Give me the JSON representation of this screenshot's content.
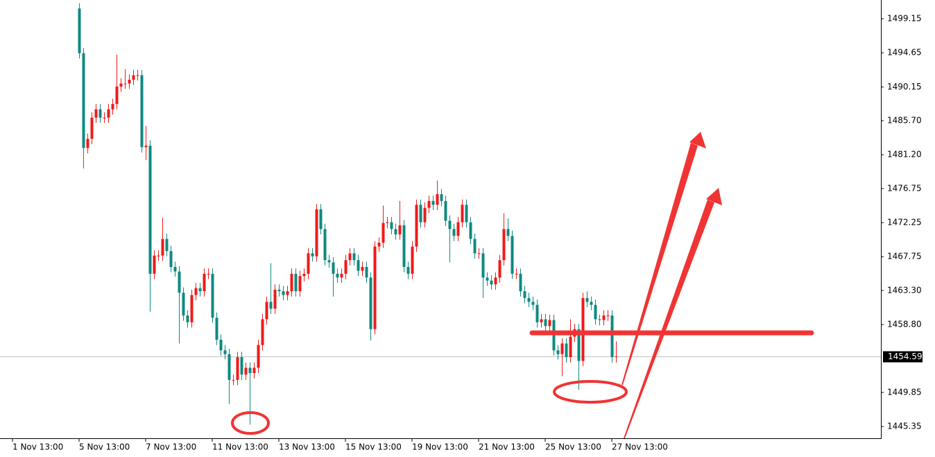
{
  "chart_data": {
    "type": "candlestick",
    "categories": [
      "1 Nov 13:00",
      null,
      null,
      null,
      null,
      null,
      null,
      null,
      null,
      null,
      null,
      null,
      null,
      null,
      null,
      null,
      "5 Nov 13:00",
      null,
      null,
      null,
      null,
      null,
      null,
      null,
      null,
      null,
      null,
      null,
      null,
      null,
      null,
      null,
      "7 Nov 13:00",
      null,
      null,
      null,
      null,
      null,
      null,
      null,
      null,
      null,
      null,
      null,
      null,
      null,
      null,
      null,
      "11 Nov 13:00",
      null,
      null,
      null,
      null,
      null,
      null,
      null,
      null,
      null,
      null,
      null,
      null,
      null,
      null,
      null,
      "13 Nov 13:00",
      null,
      null,
      null,
      null,
      null,
      null,
      null,
      null,
      null,
      null,
      null,
      null,
      null,
      null,
      null,
      "15 Nov 13:00",
      null,
      null,
      null,
      null,
      null,
      null,
      null,
      null,
      null,
      null,
      null,
      null,
      null,
      null,
      null,
      "19 Nov 13:00",
      null,
      null,
      null,
      null,
      null,
      null,
      null,
      null,
      null,
      null,
      null,
      null,
      null,
      null,
      null,
      "21 Nov 13:00",
      null,
      null,
      null,
      null,
      null,
      null,
      null,
      null,
      null,
      null,
      null,
      null,
      null,
      null,
      null,
      "25 Nov 13:00",
      null,
      null,
      null,
      null,
      null,
      null,
      null,
      null,
      null,
      null,
      null,
      null,
      null,
      null,
      null,
      "27 Nov 13:00",
      null
    ],
    "open": [
      null,
      null,
      null,
      null,
      null,
      null,
      null,
      null,
      null,
      null,
      null,
      null,
      null,
      null,
      null,
      null,
      1500.5,
      1494.6,
      1482.1,
      1483.3,
      1486.1,
      1487.2,
      1486.1,
      1486.1,
      1487.2,
      1487.9,
      1490.2,
      1490.6,
      1490.6,
      1491.1,
      1491.7,
      1491.7,
      1482.2,
      1482.4,
      1465.5,
      1467.9,
      1467.9,
      1470.1,
      1468.5,
      1466.4,
      1465.8,
      1463.0,
      1460.0,
      1459.1,
      1462.7,
      1463.6,
      1463.2,
      1465.5,
      1465.5,
      1459.7,
      1456.8,
      1455.4,
      1454.9,
      1451.5,
      1451.5,
      1454.5,
      1452.2,
      1453.1,
      1452.4,
      1453.1,
      1456.1,
      1459.5,
      1461.8,
      1460.9,
      1463.4,
      1463.2,
      1462.7,
      1463.2,
      1465.5,
      1463.2,
      1465.2,
      1465.5,
      1468.2,
      1467.8,
      1474.0,
      1471.4,
      1467.3,
      1467.0,
      1465.5,
      1465.0,
      1465.5,
      1467.3,
      1468.2,
      1467.3,
      1465.9,
      1466.4,
      1465.0,
      1458.2,
      1469.1,
      1469.6,
      1472.2,
      1472.3,
      1471.4,
      1470.7,
      1471.9,
      1466.4,
      1465.5,
      1469.1,
      1474.6,
      1472.3,
      1474.2,
      1475.1,
      1474.6,
      1476.0,
      1475.1,
      1472.5,
      1471.4,
      1470.5,
      1472.3,
      1474.6,
      1472.3,
      1470.1,
      1468.2,
      1468.2,
      1465.0,
      1464.6,
      1464.1,
      1465.0,
      1467.3,
      1471.4,
      1470.5,
      1465.5,
      1465.5,
      1463.2,
      1462.3,
      1461.8,
      1461.4,
      1459.1,
      1459.5,
      1458.6,
      1459.4,
      1455.4,
      1454.9,
      1456.3,
      1454.5,
      1457.2,
      1458.2,
      1454.0,
      1462.3,
      1461.8,
      1461.4,
      1459.5,
      1459.4,
      1460.0,
      1460.0,
      1454.5
    ],
    "high": [
      null,
      null,
      null,
      null,
      null,
      null,
      null,
      null,
      null,
      null,
      null,
      null,
      null,
      null,
      null,
      null,
      1501.2,
      1495.3,
      1484.0,
      1486.8,
      1487.9,
      1487.9,
      1486.8,
      1487.9,
      1488.6,
      1494.4,
      1491.3,
      1492.5,
      1491.8,
      1492.4,
      1492.4,
      1492.4,
      1485.0,
      1483.1,
      1468.6,
      1468.6,
      1472.9,
      1470.8,
      1469.2,
      1467.1,
      1466.5,
      1463.7,
      1460.7,
      1463.4,
      1464.3,
      1464.3,
      1466.2,
      1466.2,
      1466.2,
      1460.4,
      1457.5,
      1456.1,
      1455.6,
      1452.2,
      1455.2,
      1455.2,
      1453.8,
      1453.8,
      1453.8,
      1456.8,
      1460.2,
      1462.5,
      1466.9,
      1464.1,
      1464.1,
      1463.9,
      1463.9,
      1466.2,
      1466.2,
      1465.9,
      1466.2,
      1468.9,
      1468.9,
      1474.7,
      1474.7,
      1472.1,
      1468.0,
      1467.7,
      1466.2,
      1466.2,
      1468.0,
      1468.9,
      1468.9,
      1468.0,
      1467.1,
      1467.1,
      1465.7,
      1469.8,
      1470.3,
      1474.5,
      1473.0,
      1473.0,
      1472.1,
      1475.1,
      1472.6,
      1467.1,
      1469.8,
      1475.3,
      1475.3,
      1474.9,
      1475.8,
      1475.8,
      1477.8,
      1476.7,
      1475.8,
      1473.2,
      1472.1,
      1473.0,
      1475.3,
      1475.3,
      1473.0,
      1470.8,
      1468.9,
      1468.9,
      1465.7,
      1465.3,
      1465.7,
      1468.0,
      1473.5,
      1472.8,
      1471.2,
      1466.2,
      1466.2,
      1463.9,
      1463.0,
      1462.5,
      1462.1,
      1460.2,
      1460.2,
      1460.1,
      1460.1,
      1456.1,
      1457.0,
      1457.0,
      1459.5,
      1458.9,
      1458.9,
      1463.0,
      1463.2,
      1462.5,
      1462.1,
      1460.1,
      1460.7,
      1460.7,
      1460.7,
      1456.6
    ],
    "low": [
      null,
      null,
      null,
      null,
      null,
      null,
      null,
      null,
      null,
      null,
      null,
      null,
      null,
      null,
      null,
      null,
      1493.9,
      1479.4,
      1481.4,
      1482.6,
      1485.4,
      1485.4,
      1485.4,
      1485.4,
      1486.5,
      1487.2,
      1489.5,
      1489.9,
      1489.9,
      1490.4,
      1491.0,
      1481.5,
      1480.5,
      1460.5,
      1464.8,
      1467.2,
      1467.2,
      1467.8,
      1465.7,
      1465.1,
      1456.3,
      1459.3,
      1458.4,
      1458.4,
      1462.0,
      1462.5,
      1462.5,
      1464.8,
      1459.0,
      1456.1,
      1454.7,
      1454.2,
      1448.3,
      1450.8,
      1450.8,
      1451.5,
      1451.5,
      1445.6,
      1451.7,
      1452.4,
      1455.4,
      1458.8,
      1460.2,
      1460.2,
      1462.5,
      1462.0,
      1462.0,
      1462.5,
      1462.5,
      1462.5,
      1464.5,
      1464.8,
      1467.1,
      1467.1,
      1470.7,
      1466.6,
      1466.3,
      1462.5,
      1464.3,
      1464.3,
      1464.8,
      1466.6,
      1466.6,
      1465.2,
      1465.2,
      1464.3,
      1456.7,
      1457.5,
      1468.4,
      1468.9,
      1471.5,
      1470.7,
      1470.0,
      1470.0,
      1465.7,
      1464.8,
      1464.8,
      1468.4,
      1471.6,
      1471.6,
      1473.5,
      1473.9,
      1473.9,
      1474.4,
      1471.8,
      1467.0,
      1469.8,
      1469.8,
      1471.6,
      1471.6,
      1469.4,
      1467.5,
      1467.5,
      1462.3,
      1463.9,
      1463.4,
      1463.4,
      1464.3,
      1466.6,
      1469.8,
      1464.8,
      1464.8,
      1462.5,
      1461.6,
      1461.1,
      1460.7,
      1458.4,
      1458.4,
      1457.9,
      1457.9,
      1454.7,
      1454.2,
      1452.0,
      1453.8,
      1453.8,
      1456.5,
      1450.2,
      1453.3,
      1461.1,
      1460.7,
      1458.8,
      1458.7,
      1458.7,
      1459.3,
      1453.8,
      1453.8
    ],
    "close": [
      null,
      null,
      null,
      null,
      null,
      null,
      null,
      null,
      null,
      null,
      null,
      null,
      null,
      null,
      null,
      null,
      1494.6,
      1482.1,
      1483.3,
      1486.1,
      1487.2,
      1486.1,
      1486.1,
      1487.2,
      1487.9,
      1490.2,
      1490.6,
      1490.6,
      1491.1,
      1491.7,
      1491.7,
      1482.2,
      1482.4,
      1465.5,
      1467.9,
      1467.9,
      1470.1,
      1468.5,
      1466.4,
      1465.8,
      1463.0,
      1460.0,
      1459.1,
      1462.7,
      1463.6,
      1463.2,
      1465.5,
      1465.5,
      1459.7,
      1456.8,
      1455.4,
      1454.9,
      1451.5,
      1451.5,
      1454.5,
      1452.2,
      1453.1,
      1452.4,
      1453.1,
      1456.1,
      1459.5,
      1461.8,
      1460.9,
      1463.4,
      1463.2,
      1462.7,
      1463.2,
      1465.5,
      1463.2,
      1465.2,
      1465.5,
      1468.2,
      1467.8,
      1474.0,
      1471.4,
      1467.3,
      1467.0,
      1465.5,
      1465.0,
      1465.5,
      1467.3,
      1468.2,
      1467.3,
      1465.9,
      1466.4,
      1465.0,
      1458.2,
      1469.1,
      1469.6,
      1472.2,
      1472.3,
      1471.4,
      1470.7,
      1471.9,
      1466.4,
      1465.5,
      1469.1,
      1474.6,
      1472.3,
      1474.2,
      1475.1,
      1474.6,
      1476.0,
      1475.1,
      1472.5,
      1471.4,
      1470.5,
      1472.3,
      1474.6,
      1472.3,
      1470.1,
      1468.2,
      1468.2,
      1465.0,
      1464.6,
      1464.1,
      1465.0,
      1467.3,
      1471.4,
      1470.5,
      1465.5,
      1465.5,
      1463.2,
      1462.3,
      1461.8,
      1461.4,
      1459.1,
      1459.5,
      1458.6,
      1459.4,
      1455.4,
      1454.9,
      1456.3,
      1454.5,
      1457.2,
      1458.2,
      1454.0,
      1462.3,
      1461.8,
      1461.4,
      1459.5,
      1459.4,
      1460.0,
      1460.0,
      1454.5,
      1454.59
    ],
    "up_color": "#ef1a1a",
    "down_color": "#0e8a80",
    "ylim": [
      1443.8,
      1501.62
    ],
    "yticks": [
      1499.15,
      1494.65,
      1490.15,
      {
        "value": 1485.7,
        "label": "1485.70"
      },
      {
        "value": 1481.2,
        "label": "1481.20"
      },
      1476.75,
      1472.25,
      1467.75,
      {
        "value": 1463.3,
        "label": "1463.30"
      },
      {
        "value": 1458.8,
        "label": "1458.80"
      },
      1449.85,
      1445.35
    ],
    "current_price": 1454.59,
    "grid": false
  }
}
